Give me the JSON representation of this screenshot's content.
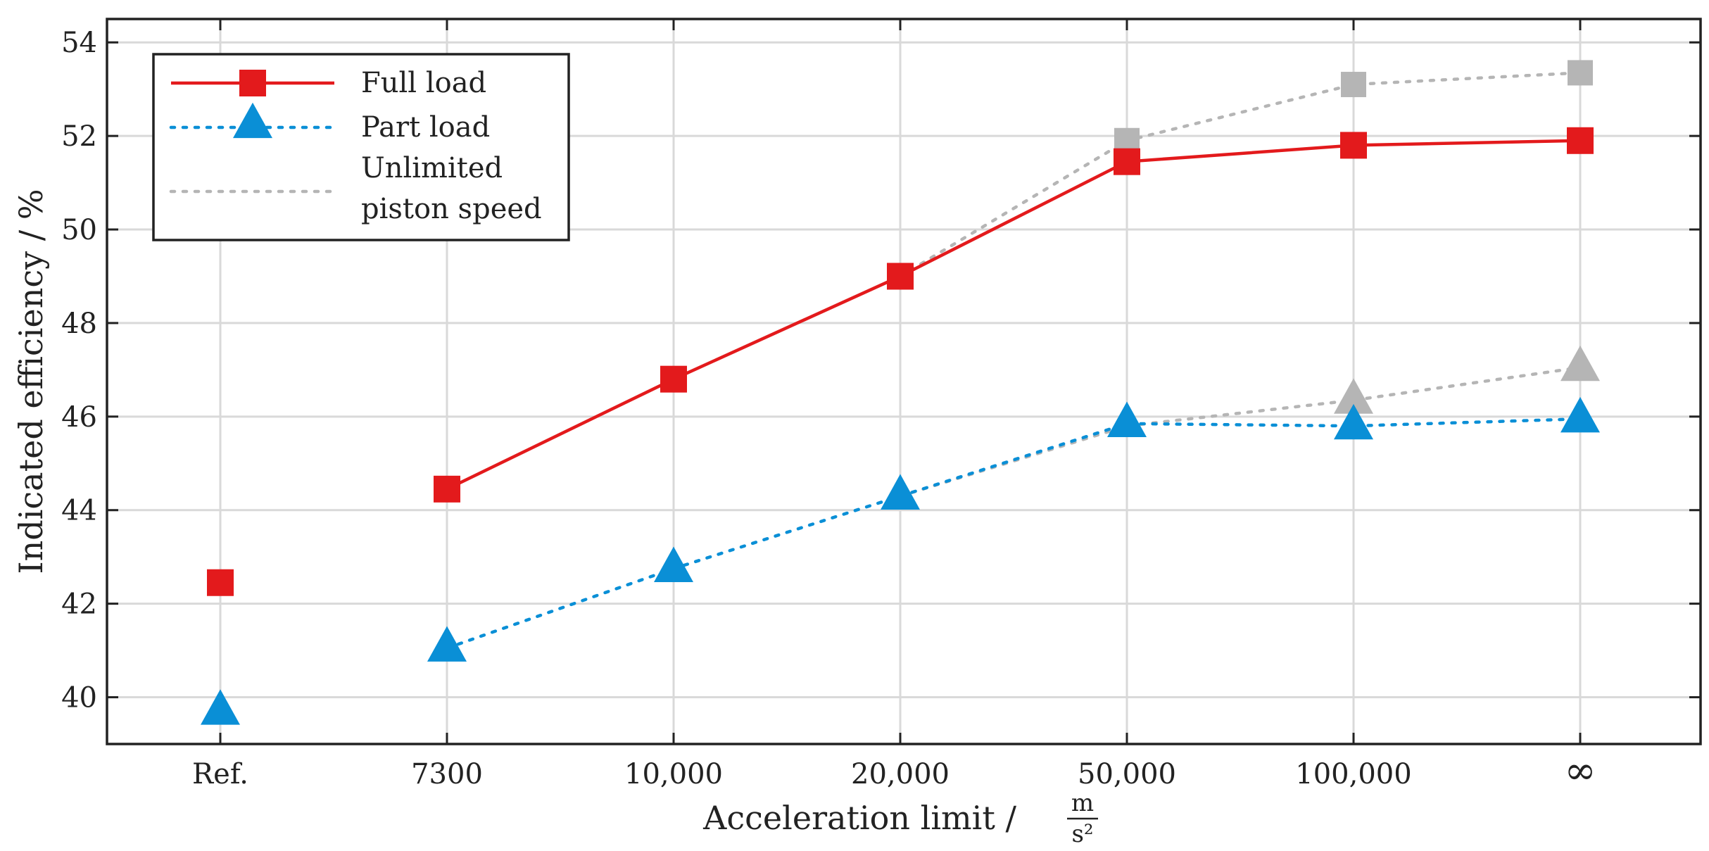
{
  "chart_data": {
    "type": "line",
    "title": "",
    "xlabel": "Acceleration limit /",
    "xlabel_unit": {
      "numerator": "m",
      "denominator": "s²"
    },
    "ylabel": "Indicated efficiency / %",
    "categories": [
      "Ref.",
      "7300",
      "10,000",
      "20,000",
      "50,000",
      "100,000",
      "∞"
    ],
    "ylim": [
      39,
      54.5
    ],
    "yticks": [
      40,
      42,
      44,
      46,
      48,
      50,
      52,
      54
    ],
    "grid": true,
    "legend_position": "top-left",
    "series": [
      {
        "name": "Full load",
        "group": "full",
        "style": "solid",
        "marker": "square",
        "color": "#e31a1c",
        "values": [
          42.45,
          44.45,
          46.8,
          49.0,
          51.45,
          51.8,
          51.9
        ],
        "connected_from_index": 1
      },
      {
        "name": "Part load",
        "group": "part",
        "style": "dotted",
        "marker": "triangle",
        "color": "#0a8fd6",
        "values": [
          39.7,
          41.05,
          42.75,
          44.3,
          45.85,
          45.8,
          45.95
        ],
        "connected_from_index": 1
      },
      {
        "name": "Unlimited piston speed",
        "legend_lines": [
          "Unlimited",
          "piston speed"
        ],
        "group": "unlimited",
        "style": "dotted",
        "marker": "none",
        "color": "#b5b5b5",
        "values": [
          null,
          null,
          null,
          49.0,
          51.9,
          53.1,
          53.35
        ],
        "connected_from_index": 3
      },
      {
        "name": "Unlimited piston speed (part load)",
        "group": "unlimited",
        "style": "dotted",
        "marker": "none",
        "color": "#b5b5b5",
        "values": [
          null,
          null,
          null,
          44.3,
          45.8,
          46.35,
          47.05
        ],
        "connected_from_index": 3
      }
    ],
    "gray_markers": [
      {
        "category_index": 4,
        "value": 51.9,
        "marker": "square"
      },
      {
        "category_index": 5,
        "value": 53.1,
        "marker": "square"
      },
      {
        "category_index": 6,
        "value": 53.35,
        "marker": "square"
      },
      {
        "category_index": 5,
        "value": 46.35,
        "marker": "triangle"
      },
      {
        "category_index": 6,
        "value": 47.05,
        "marker": "triangle"
      }
    ]
  },
  "colors": {
    "axis": "#222222",
    "grid": "#d9d9d9",
    "gray_marker": "#b5b5b5"
  }
}
